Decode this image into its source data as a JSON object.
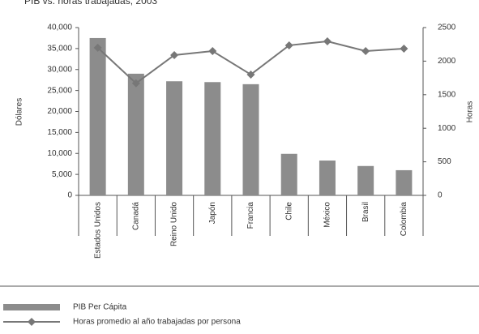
{
  "chart_data": {
    "type": "bar_line",
    "title": "PIB vs. horas trabajadas, 2003",
    "y_label": "Dólares",
    "y2_label": "Horas",
    "categories": [
      "Estados Unidos",
      "Canadá",
      "Reino Unido",
      "Japón",
      "Francia",
      "Chile",
      "México",
      "Brasil",
      "Colombia"
    ],
    "series": [
      {
        "name": "PIB Per Cápita",
        "type": "bar",
        "color": "#8c8c8c",
        "values": [
          37500,
          29000,
          27200,
          27000,
          26500,
          9900,
          8300,
          7000,
          6000
        ]
      },
      {
        "name": "Horas promedio al año trabajadas por persona",
        "type": "line",
        "axis": "y2",
        "color": "#777777",
        "values": [
          2200,
          1670,
          2090,
          2150,
          1800,
          2235,
          2295,
          2150,
          2186
        ]
      }
    ],
    "ylim": [
      0,
      40000
    ],
    "yticks": [
      0,
      {
        "value": 5000,
        "label": "5,000"
      },
      {
        "value": 10000,
        "label": "10,000"
      },
      {
        "value": 15000,
        "label": "15,000"
      },
      {
        "value": 20000,
        "label": "20,000"
      },
      {
        "value": 25000,
        "label": "25,000"
      },
      {
        "value": 30000,
        "label": "30,000"
      },
      {
        "value": 35000,
        "label": "35,000"
      },
      {
        "value": 40000,
        "label": "40,000"
      }
    ],
    "y2lim": [
      0,
      2500
    ],
    "y2ticks": [
      0,
      500,
      1000,
      1500,
      2000,
      2500
    ],
    "legend": "bottom"
  }
}
